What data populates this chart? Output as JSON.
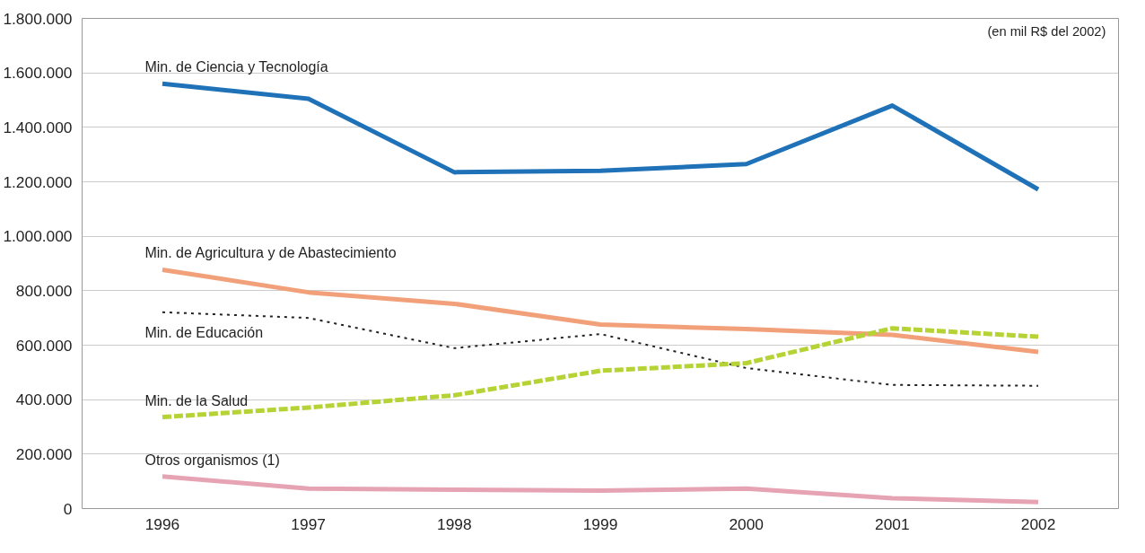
{
  "chart_data": {
    "type": "line",
    "categories": [
      "1996",
      "1997",
      "1998",
      "1999",
      "2000",
      "2001",
      "2002"
    ],
    "series": [
      {
        "name": "Min. de Ciencia y Tecnología",
        "color": "#1f72b8",
        "line_style": "solid",
        "values": [
          1560000,
          1505000,
          1235000,
          1240000,
          1265000,
          1480000,
          1172000
        ]
      },
      {
        "name": "Min. de Agricultura y de Abastecimiento",
        "color": "#f2a07a",
        "line_style": "solid",
        "values": [
          877000,
          794000,
          752000,
          676000,
          659000,
          638000,
          575000
        ]
      },
      {
        "name": "Min. de Educación",
        "color": "#222222",
        "line_style": "dotted",
        "values": [
          721000,
          700000,
          589000,
          641000,
          516000,
          454000,
          451000
        ]
      },
      {
        "name": "Min. de la Salud",
        "color": "#b5d334",
        "line_style": "dashed",
        "values": [
          336000,
          371000,
          416000,
          506000,
          534000,
          662000,
          631000
        ]
      },
      {
        "name": "Otros organismos (1)",
        "color": "#e6a3b3",
        "line_style": "solid",
        "values": [
          118000,
          73000,
          69000,
          66000,
          73000,
          38000,
          24000
        ]
      }
    ],
    "ylim": [
      0,
      1800000
    ],
    "yticks": [
      {
        "value": 0,
        "label": "0"
      },
      {
        "value": 200000,
        "label": "200.000"
      },
      {
        "value": 400000,
        "label": "400.000"
      },
      {
        "value": 600000,
        "label": "600.000"
      },
      {
        "value": 800000,
        "label": "800.000"
      },
      {
        "value": 1000000,
        "label": "1.000.000"
      },
      {
        "value": 1200000,
        "label": "1.200.000"
      },
      {
        "value": 1400000,
        "label": "1.400.000"
      },
      {
        "value": 1600000,
        "label": "1.600.000"
      },
      {
        "value": 1800000,
        "label": "1.800.000"
      }
    ],
    "grid": "y",
    "marker": "none",
    "annotations": [
      "(en mil R$ del 2002)"
    ]
  }
}
